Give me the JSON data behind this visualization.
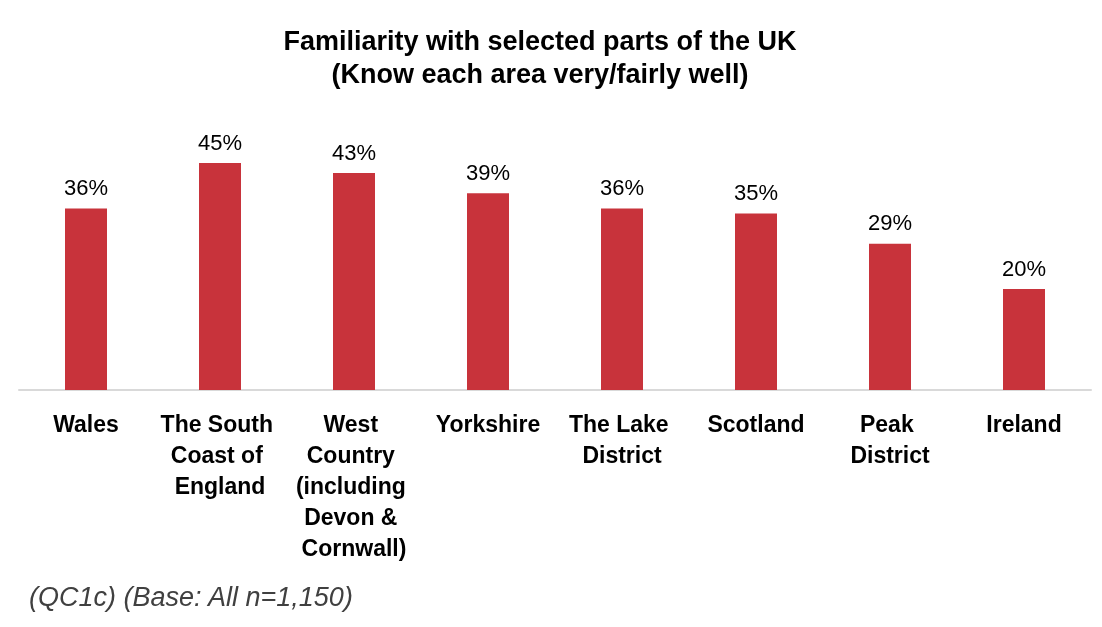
{
  "chart_data": {
    "type": "bar",
    "title": "Familiarity with selected parts of the UK",
    "subtitle": "(Know each area very/fairly well)",
    "categories": [
      "Wales",
      "The South Coast of England",
      "West Country (including Devon & Cornwall)",
      "Yorkshire",
      "The Lake District",
      "Scotland",
      "Peak District",
      "Ireland"
    ],
    "values": [
      36,
      45,
      43,
      39,
      36,
      35,
      29,
      20
    ],
    "value_labels": [
      "36%",
      "45%",
      "43%",
      "39%",
      "36%",
      "35%",
      "29%",
      "20%"
    ],
    "color": "#c8333b",
    "annotations": [
      "(QC1c) (Base: All n=1,150)"
    ]
  }
}
